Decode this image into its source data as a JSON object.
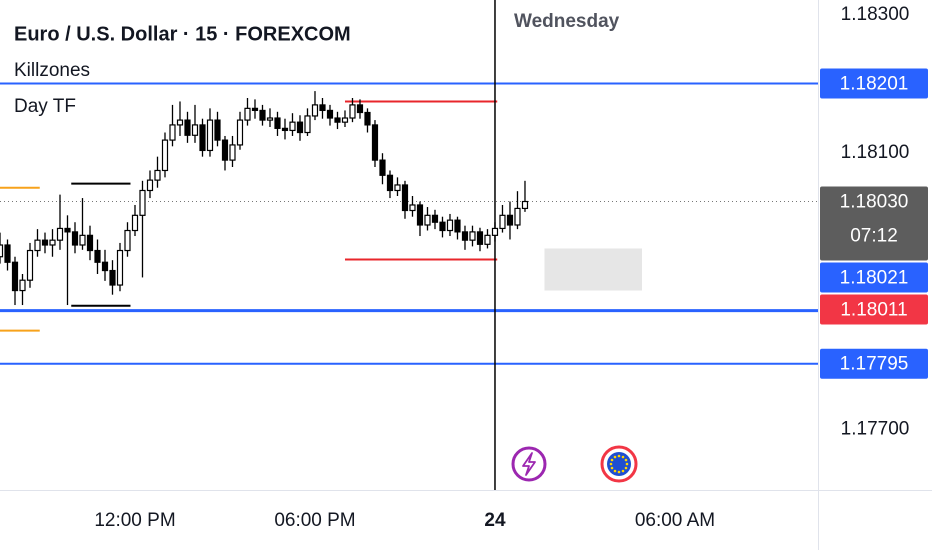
{
  "chart_data": {
    "type": "candlestick",
    "title": "Euro / U.S. Dollar · 15 · FOREXCOM",
    "indicators": [
      "Killzones",
      "Day TF"
    ],
    "session_label": "Wednesday",
    "up_color": "#ffffff",
    "down_color": "#000000",
    "open": [
      1.1795,
      1.17967,
      1.17942,
      1.17901,
      1.17916,
      1.17959,
      1.17974,
      1.17967,
      1.17974,
      1.17991,
      1.17986,
      1.17967,
      1.17981,
      1.17959,
      1.17942,
      1.1793,
      1.17909,
      1.17959,
      1.17988,
      1.1801,
      1.18046,
      1.18061,
      1.18075,
      1.18119,
      1.18141,
      1.18148,
      1.18126,
      1.18141,
      1.18104,
      1.18148,
      1.18119,
      1.1809,
      1.18112,
      1.18148,
      1.18165,
      1.18162,
      1.18148,
      1.18151,
      1.18136,
      1.18133,
      1.18145,
      1.1813,
      1.18154,
      1.1817,
      1.18162,
      1.18151,
      1.18145,
      1.18151,
      1.1817,
      1.18159,
      1.18141,
      1.1809,
      1.18068,
      1.18046,
      1.18054,
      1.18017,
      1.18025,
      1.17996,
      1.1801,
      1.18,
      1.17988,
      1.18003,
      1.17986,
      1.17974,
      1.17986,
      1.17968,
      1.17981,
      1.17991,
      1.1801,
      1.17996,
      1.1802
    ],
    "high": [
      1.17985,
      1.17975,
      1.1795,
      1.17925,
      1.1797,
      1.1799,
      1.17985,
      1.1799,
      1.1804,
      1.1801,
      1.18,
      1.18035,
      1.17995,
      1.17975,
      1.1796,
      1.17945,
      1.1797,
      1.18,
      1.18025,
      1.1806,
      1.18075,
      1.18095,
      1.1813,
      1.1817,
      1.18175,
      1.1816,
      1.1817,
      1.1815,
      1.18165,
      1.1816,
      1.18125,
      1.18125,
      1.1816,
      1.1818,
      1.18178,
      1.1817,
      1.18165,
      1.1816,
      1.1815,
      1.18158,
      1.18155,
      1.18165,
      1.1819,
      1.1818,
      1.1817,
      1.1816,
      1.18162,
      1.1818,
      1.18178,
      1.18165,
      1.18148,
      1.181,
      1.18075,
      1.18065,
      1.1806,
      1.18038,
      1.1803,
      1.18022,
      1.18018,
      1.18008,
      1.18012,
      1.18008,
      1.17995,
      1.17995,
      1.17992,
      1.1799,
      1.18,
      1.18025,
      1.1803,
      1.18045,
      1.1806
    ],
    "low": [
      1.1794,
      1.1793,
      1.1788,
      1.1788,
      1.17905,
      1.1795,
      1.17955,
      1.1795,
      1.1796,
      1.1788,
      1.17955,
      1.1796,
      1.17945,
      1.17925,
      1.17915,
      1.17895,
      1.179,
      1.1795,
      1.1798,
      1.1792,
      1.18035,
      1.1805,
      1.18065,
      1.1811,
      1.18125,
      1.18115,
      1.18115,
      1.18095,
      1.18095,
      1.1811,
      1.18075,
      1.1808,
      1.18105,
      1.1814,
      1.1815,
      1.1814,
      1.18138,
      1.18125,
      1.1812,
      1.18125,
      1.18118,
      1.18125,
      1.18148,
      1.1815,
      1.1814,
      1.18135,
      1.18138,
      1.18145,
      1.1815,
      1.1813,
      1.1808,
      1.18055,
      1.18035,
      1.18038,
      1.18005,
      1.18008,
      1.1798,
      1.17988,
      1.1799,
      1.17978,
      1.1798,
      1.17975,
      1.1796,
      1.17965,
      1.17958,
      1.17962,
      1.17972,
      1.17985,
      1.17975,
      1.1799,
      1.18015
    ],
    "close": [
      1.17967,
      1.17942,
      1.17901,
      1.17916,
      1.17959,
      1.17974,
      1.17967,
      1.17974,
      1.17991,
      1.17986,
      1.17967,
      1.17981,
      1.17959,
      1.17942,
      1.1793,
      1.17909,
      1.17959,
      1.17988,
      1.1801,
      1.18046,
      1.18061,
      1.18075,
      1.18119,
      1.18141,
      1.18148,
      1.18126,
      1.18141,
      1.18104,
      1.18148,
      1.18119,
      1.1809,
      1.18112,
      1.18148,
      1.18165,
      1.18162,
      1.18148,
      1.18151,
      1.18136,
      1.18133,
      1.18145,
      1.1813,
      1.18154,
      1.1817,
      1.18162,
      1.18151,
      1.18145,
      1.18151,
      1.1817,
      1.18159,
      1.18141,
      1.1809,
      1.18068,
      1.18046,
      1.18054,
      1.18017,
      1.18025,
      1.17996,
      1.1801,
      1.18,
      1.17988,
      1.18003,
      1.17986,
      1.17974,
      1.17986,
      1.17968,
      1.17981,
      1.17991,
      1.1801,
      1.17996,
      1.1802,
      1.1803
    ],
    "xlim": [
      0,
      109.07
    ],
    "xticks": [
      {
        "value": 18,
        "label": "12:00 PM"
      },
      {
        "value": 42,
        "label": "06:00 PM"
      },
      {
        "value": 66,
        "label": "24",
        "emphasis": true
      },
      {
        "value": 90,
        "label": "06:00 AM"
      }
    ],
    "ylim": [
      1.17612,
      1.18322
    ],
    "yticks": [
      {
        "value": 1.183,
        "label": "1.18300"
      },
      {
        "value": 1.181,
        "label": "1.18100"
      },
      {
        "value": 1.177,
        "label": "1.17700"
      }
    ],
    "cursor_x": 66,
    "last_price": {
      "value": 1.1803,
      "label": "1.18030",
      "countdown": "07:12",
      "color": "#5d5d5d"
    },
    "levels": [
      {
        "value": 1.18201,
        "label": "1.18201",
        "color": "#2962ff",
        "line": true,
        "width": 2
      },
      {
        "value": 1.18021,
        "label": "1.18021",
        "color": "#2962ff",
        "line": false,
        "width": 2
      },
      {
        "value": 1.18011,
        "label": "1.18011",
        "color": "#f23645",
        "line": false,
        "width": 2
      },
      {
        "value": 1.17872,
        "color": "#2962ff",
        "line": true,
        "width": 3
      },
      {
        "value": 1.17795,
        "label": "1.17795",
        "color": "#2962ff",
        "line": true,
        "width": 2
      }
    ],
    "zones": [
      {
        "top": 1.1805,
        "bottom": 1.17843,
        "from": 0,
        "to": 5.3,
        "color": "#f7a21b",
        "style": "lines"
      },
      {
        "top": 1.18056,
        "bottom": 1.17879,
        "from": 9.5,
        "to": 17.4,
        "color": "#000000",
        "style": "lines"
      },
      {
        "top": 1.18175,
        "bottom": 1.17946,
        "from": 46,
        "to": 66.3,
        "color": "#e8262b",
        "style": "lines"
      },
      {
        "top": 1.17962,
        "bottom": 1.17901,
        "from": 72.6,
        "to": 85.6,
        "color": "#e6e6e6",
        "style": "box"
      }
    ]
  }
}
